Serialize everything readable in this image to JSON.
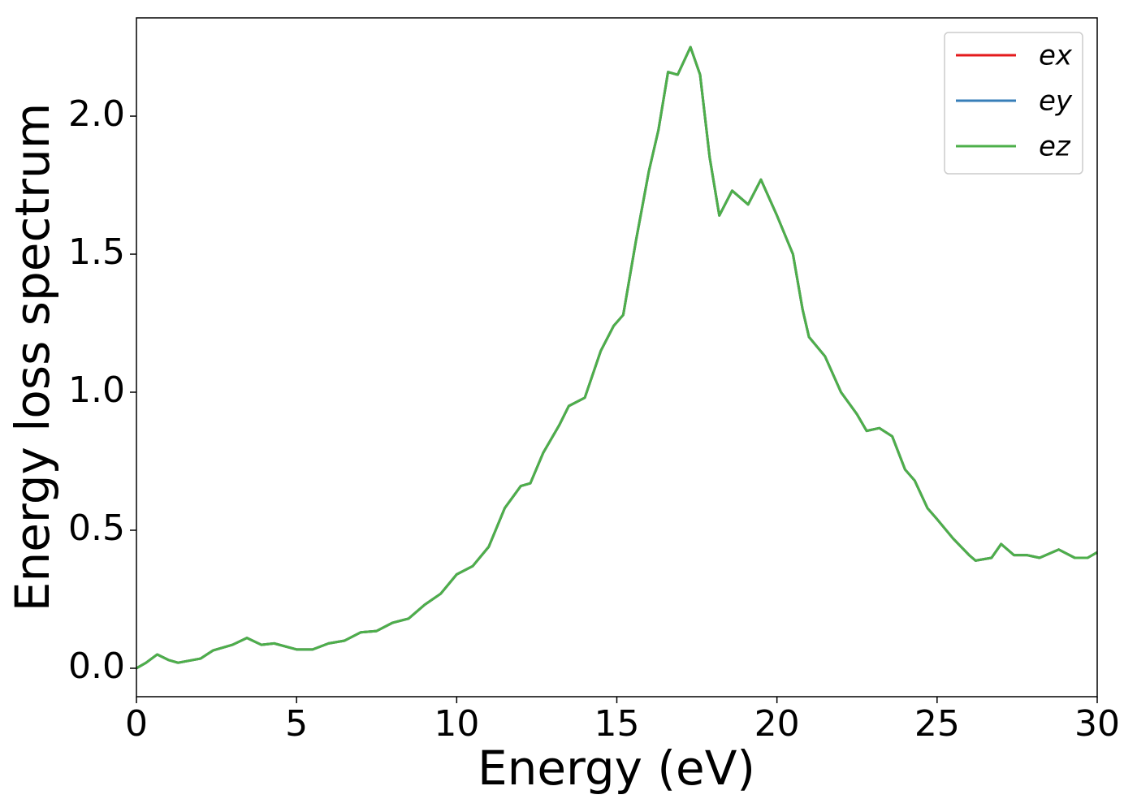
{
  "chart_data": {
    "type": "line",
    "xlabel": "Energy (eV)",
    "ylabel": "Energy loss spectrum",
    "x": [
      0,
      0.3,
      0.65,
      1.0,
      1.3,
      2.0,
      2.4,
      3.0,
      3.45,
      3.9,
      4.3,
      5.0,
      5.5,
      6.0,
      6.5,
      7.0,
      7.5,
      8.0,
      8.5,
      9.0,
      9.5,
      10.0,
      10.5,
      11.0,
      11.5,
      12.0,
      12.3,
      12.7,
      13.2,
      13.5,
      14.0,
      14.5,
      14.9,
      15.2,
      15.6,
      16.0,
      16.3,
      16.6,
      16.9,
      17.3,
      17.6,
      17.9,
      18.2,
      18.6,
      19.1,
      19.5,
      20.0,
      20.5,
      20.8,
      21.0,
      21.5,
      22.0,
      22.5,
      22.8,
      23.2,
      23.6,
      24.0,
      24.3,
      24.7,
      25.0,
      25.5,
      26.0,
      26.2,
      26.7,
      27.0,
      27.4,
      27.8,
      28.2,
      28.8,
      29.3,
      29.7,
      30.0
    ],
    "series": [
      {
        "name": "ex",
        "color": "#e41a1c",
        "values": [
          0.0,
          0.02,
          0.05,
          0.03,
          0.02,
          0.035,
          0.065,
          0.085,
          0.11,
          0.085,
          0.09,
          0.068,
          0.068,
          0.09,
          0.1,
          0.13,
          0.135,
          0.165,
          0.18,
          0.23,
          0.27,
          0.34,
          0.37,
          0.44,
          0.58,
          0.66,
          0.67,
          0.78,
          0.88,
          0.95,
          0.98,
          1.15,
          1.24,
          1.28,
          1.55,
          1.8,
          1.95,
          2.16,
          2.15,
          2.25,
          2.15,
          1.85,
          1.64,
          1.73,
          1.68,
          1.77,
          1.64,
          1.5,
          1.3,
          1.2,
          1.13,
          1.0,
          0.92,
          0.86,
          0.87,
          0.84,
          0.72,
          0.68,
          0.58,
          0.54,
          0.47,
          0.41,
          0.39,
          0.4,
          0.45,
          0.41,
          0.41,
          0.4,
          0.43,
          0.4,
          0.4,
          0.42
        ]
      },
      {
        "name": "ey",
        "color": "#377eb8",
        "values": [
          0.0,
          0.02,
          0.05,
          0.03,
          0.02,
          0.035,
          0.065,
          0.085,
          0.11,
          0.085,
          0.09,
          0.068,
          0.068,
          0.09,
          0.1,
          0.13,
          0.135,
          0.165,
          0.18,
          0.23,
          0.27,
          0.34,
          0.37,
          0.44,
          0.58,
          0.66,
          0.67,
          0.78,
          0.88,
          0.95,
          0.98,
          1.15,
          1.24,
          1.28,
          1.55,
          1.8,
          1.95,
          2.16,
          2.15,
          2.25,
          2.15,
          1.85,
          1.64,
          1.73,
          1.68,
          1.77,
          1.64,
          1.5,
          1.3,
          1.2,
          1.13,
          1.0,
          0.92,
          0.86,
          0.87,
          0.84,
          0.72,
          0.68,
          0.58,
          0.54,
          0.47,
          0.41,
          0.39,
          0.4,
          0.45,
          0.41,
          0.41,
          0.4,
          0.43,
          0.4,
          0.4,
          0.42
        ]
      },
      {
        "name": "ez",
        "color": "#4daf4a",
        "values": [
          0.0,
          0.02,
          0.05,
          0.03,
          0.02,
          0.035,
          0.065,
          0.085,
          0.11,
          0.085,
          0.09,
          0.068,
          0.068,
          0.09,
          0.1,
          0.13,
          0.135,
          0.165,
          0.18,
          0.23,
          0.27,
          0.34,
          0.37,
          0.44,
          0.58,
          0.66,
          0.67,
          0.78,
          0.88,
          0.95,
          0.98,
          1.15,
          1.24,
          1.28,
          1.55,
          1.8,
          1.95,
          2.16,
          2.15,
          2.25,
          2.15,
          1.85,
          1.64,
          1.73,
          1.68,
          1.77,
          1.64,
          1.5,
          1.3,
          1.2,
          1.13,
          1.0,
          0.92,
          0.86,
          0.87,
          0.84,
          0.72,
          0.68,
          0.58,
          0.54,
          0.47,
          0.41,
          0.39,
          0.4,
          0.45,
          0.41,
          0.41,
          0.4,
          0.43,
          0.4,
          0.4,
          0.42
        ]
      }
    ],
    "xlim": [
      0,
      30
    ],
    "xticks": [
      0,
      5,
      10,
      15,
      20,
      25,
      30
    ],
    "ylim": [
      -0.103,
      2.356
    ],
    "yticks": [
      {
        "value": 0,
        "label": "0.0"
      },
      0.5,
      {
        "value": 1,
        "label": "1.0"
      },
      1.5,
      {
        "value": 2,
        "label": "2.0"
      }
    ],
    "grid": false,
    "legend": "upper right"
  }
}
